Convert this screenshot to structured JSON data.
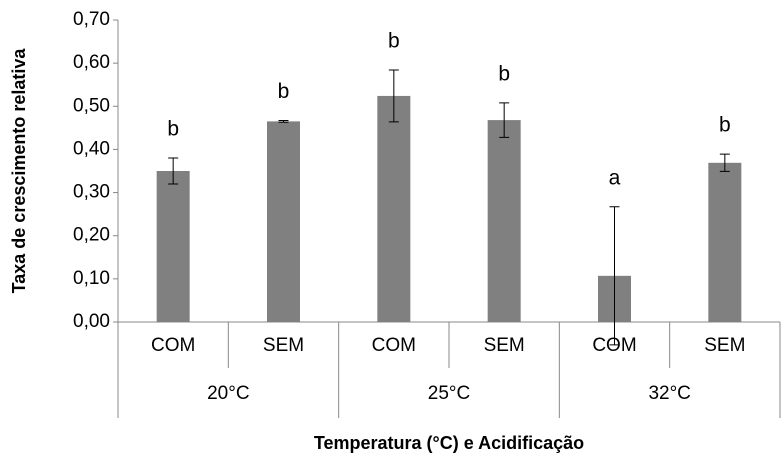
{
  "chart_data": {
    "type": "bar",
    "y_label": "Taxa de crescimento relativa",
    "x_label": "Temperatura (°C) e Acidificação",
    "categories": [
      "COM",
      "SEM",
      "COM",
      "SEM",
      "COM",
      "SEM"
    ],
    "groups": [
      "20°C",
      "25°C",
      "32°C"
    ],
    "values": [
      0.35,
      0.465,
      0.524,
      0.468,
      0.107,
      0.369
    ],
    "errors": [
      0.03,
      0.002,
      0.06,
      0.04,
      0.16,
      0.02
    ],
    "letters": [
      "b",
      "b",
      "b",
      "b",
      "a",
      "b"
    ],
    "color": "#808080",
    "ylim": [
      0,
      0.7
    ],
    "yticks": [
      {
        "value": 0,
        "label": "0,00"
      },
      {
        "value": 0.1,
        "label": "0,10"
      },
      {
        "value": 0.2,
        "label": "0,20"
      },
      {
        "value": 0.3,
        "label": "0,30"
      },
      {
        "value": 0.4,
        "label": "0,40"
      },
      {
        "value": 0.5,
        "label": "0,50"
      },
      {
        "value": 0.6,
        "label": "0,60"
      },
      {
        "value": 0.7,
        "label": "0,70"
      }
    ]
  }
}
